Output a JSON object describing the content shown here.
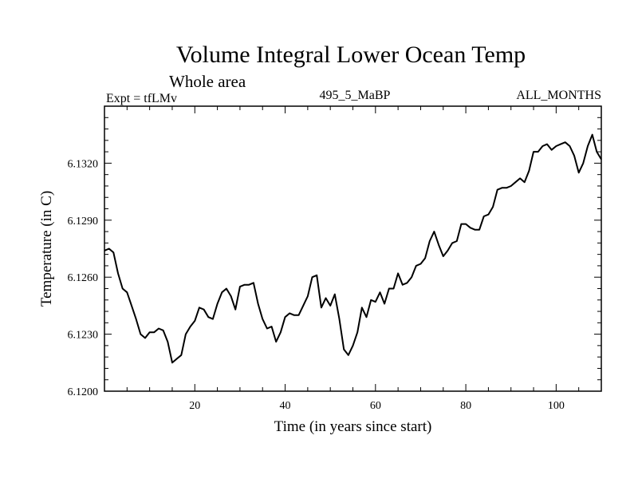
{
  "chart_data": {
    "type": "line",
    "title": "Volume Integral Lower Ocean Temp",
    "subtitle": "Whole area",
    "top_left_label": "Expt = tfLMv",
    "top_center_label": "495_5_MaBP",
    "top_right_label": "ALL_MONTHS",
    "xlabel": "Time (in years since start)",
    "ylabel": "Temperature (in C)",
    "xlim": [
      0,
      110
    ],
    "ylim": [
      6.12,
      6.135
    ],
    "xticks": [
      20,
      40,
      60,
      80,
      100
    ],
    "yticks": [
      6.12,
      6.123,
      6.126,
      6.129,
      6.132
    ],
    "ytick_labels": [
      "6.1200",
      "6.1230",
      "6.1260",
      "6.1290",
      "6.1320"
    ],
    "series": [
      {
        "name": "Volume Integral Lower Ocean Temp",
        "color": "#000000",
        "x": [
          0,
          1,
          2,
          3,
          4,
          5,
          6,
          7,
          8,
          9,
          10,
          11,
          12,
          13,
          14,
          15,
          16,
          17,
          18,
          19,
          20,
          21,
          22,
          23,
          24,
          25,
          26,
          27,
          28,
          29,
          30,
          31,
          32,
          33,
          34,
          35,
          36,
          37,
          38,
          39,
          40,
          41,
          42,
          43,
          44,
          45,
          46,
          47,
          48,
          49,
          50,
          51,
          52,
          53,
          54,
          55,
          56,
          57,
          58,
          59,
          60,
          61,
          62,
          63,
          64,
          65,
          66,
          67,
          68,
          69,
          70,
          71,
          72,
          73,
          74,
          75,
          76,
          77,
          78,
          79,
          80,
          81,
          82,
          83,
          84,
          85,
          86,
          87,
          88,
          89,
          90,
          91,
          92,
          93,
          94,
          95,
          96,
          97,
          98,
          99,
          100,
          101,
          102,
          103,
          104,
          105,
          106,
          107,
          108,
          109,
          110
        ],
        "y": [
          6.1274,
          6.1275,
          6.1273,
          6.1262,
          6.1254,
          6.1252,
          6.1245,
          6.1238,
          6.123,
          6.1228,
          6.1231,
          6.1231,
          6.1233,
          6.1232,
          6.1226,
          6.1215,
          6.1217,
          6.1219,
          6.123,
          6.1234,
          6.1237,
          6.1244,
          6.1243,
          6.1239,
          6.1238,
          6.1246,
          6.1252,
          6.1254,
          6.125,
          6.1243,
          6.1255,
          6.1256,
          6.1256,
          6.1257,
          6.1246,
          6.1238,
          6.1233,
          6.1234,
          6.1226,
          6.1231,
          6.1239,
          6.1241,
          6.124,
          6.124,
          6.1245,
          6.125,
          6.126,
          6.1261,
          6.1244,
          6.1249,
          6.1245,
          6.1251,
          6.1238,
          6.1222,
          6.1219,
          6.1224,
          6.1231,
          6.1244,
          6.1239,
          6.1248,
          6.1247,
          6.1252,
          6.1246,
          6.1254,
          6.1254,
          6.1262,
          6.1256,
          6.1257,
          6.126,
          6.1266,
          6.1267,
          6.127,
          6.1279,
          6.1284,
          6.1277,
          6.1271,
          6.1274,
          6.1278,
          6.1279,
          6.1288,
          6.1288,
          6.1286,
          6.1285,
          6.1285,
          6.1292,
          6.1293,
          6.1297,
          6.1306,
          6.1307,
          6.1307,
          6.1308,
          6.131,
          6.1312,
          6.131,
          6.1316,
          6.1326,
          6.1326,
          6.1329,
          6.133,
          6.1327,
          6.1329,
          6.133,
          6.1331,
          6.1329,
          6.1324,
          6.1315,
          6.132,
          6.1329,
          6.1335,
          6.1326,
          6.1322
        ]
      }
    ]
  }
}
